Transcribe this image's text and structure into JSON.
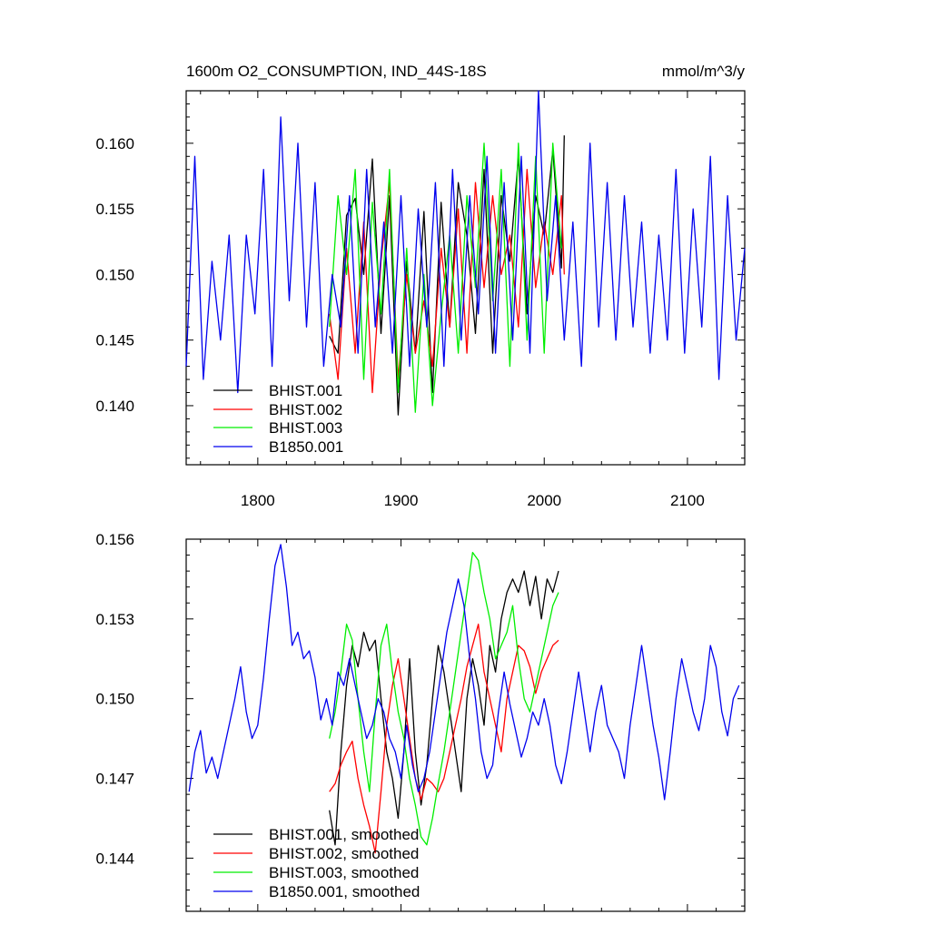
{
  "chart_data": [
    {
      "type": "line",
      "title": "1600m O2_CONSUMPTION, IND_44S-18S",
      "units": "mmol/m^3/y",
      "xlim": [
        1750,
        2140
      ],
      "ylim": [
        0.1355,
        0.164
      ],
      "x_ticks": [
        1800,
        1900,
        2000,
        2100
      ],
      "x_tick_labels": [
        "1800",
        "1900",
        "2000",
        "2100"
      ],
      "y_ticks": [
        0.14,
        0.145,
        0.15,
        0.155,
        0.16
      ],
      "y_tick_labels": [
        "0.140",
        "0.145",
        "0.150",
        "0.155",
        "0.160"
      ],
      "legend_position": "bottom-left",
      "series": [
        {
          "name": "BHIST.001",
          "color": "#000000",
          "x": [
            1850,
            1856,
            1862,
            1868,
            1874,
            1880,
            1886,
            1892,
            1898,
            1904,
            1910,
            1916,
            1922,
            1928,
            1934,
            1940,
            1946,
            1952,
            1958,
            1964,
            1970,
            1976,
            1982,
            1988,
            1994,
            2000,
            2006,
            2012,
            2014
          ],
          "values": [
            0.1453,
            0.144,
            0.1545,
            0.1558,
            0.15,
            0.1588,
            0.1455,
            0.156,
            0.1393,
            0.151,
            0.144,
            0.1548,
            0.141,
            0.1555,
            0.146,
            0.157,
            0.153,
            0.1455,
            0.158,
            0.144,
            0.156,
            0.151,
            0.159,
            0.147,
            0.156,
            0.153,
            0.1595,
            0.1505,
            0.1606
          ]
        },
        {
          "name": "BHIST.002",
          "color": "#ff0000",
          "x": [
            1850,
            1856,
            1862,
            1868,
            1874,
            1880,
            1886,
            1892,
            1898,
            1904,
            1910,
            1916,
            1922,
            1928,
            1934,
            1940,
            1946,
            1952,
            1958,
            1964,
            1970,
            1976,
            1982,
            1988,
            1994,
            2000,
            2006,
            2012,
            2014
          ],
          "values": [
            0.147,
            0.142,
            0.152,
            0.144,
            0.154,
            0.141,
            0.151,
            0.157,
            0.142,
            0.15,
            0.144,
            0.148,
            0.143,
            0.152,
            0.146,
            0.155,
            0.144,
            0.157,
            0.149,
            0.156,
            0.15,
            0.153,
            0.146,
            0.158,
            0.149,
            0.154,
            0.15,
            0.156,
            0.15
          ]
        },
        {
          "name": "BHIST.003",
          "color": "#00ee00",
          "x": [
            1850,
            1856,
            1862,
            1868,
            1874,
            1880,
            1886,
            1892,
            1898,
            1904,
            1910,
            1916,
            1922,
            1928,
            1934,
            1940,
            1946,
            1952,
            1958,
            1964,
            1970,
            1976,
            1982,
            1988,
            1994,
            2000,
            2006,
            2012
          ],
          "values": [
            0.146,
            0.156,
            0.15,
            0.158,
            0.142,
            0.1555,
            0.147,
            0.158,
            0.141,
            0.152,
            0.1395,
            0.15,
            0.14,
            0.147,
            0.153,
            0.144,
            0.156,
            0.149,
            0.16,
            0.148,
            0.158,
            0.143,
            0.16,
            0.145,
            0.159,
            0.144,
            0.16,
            0.152
          ]
        },
        {
          "name": "B1850.001",
          "color": "#0000ee",
          "x": [
            1750,
            1756,
            1762,
            1768,
            1774,
            1780,
            1786,
            1792,
            1798,
            1804,
            1810,
            1816,
            1822,
            1828,
            1834,
            1840,
            1846,
            1852,
            1858,
            1864,
            1870,
            1876,
            1882,
            1888,
            1894,
            1900,
            1906,
            1912,
            1918,
            1924,
            1930,
            1936,
            1942,
            1948,
            1954,
            1960,
            1966,
            1972,
            1978,
            1984,
            1990,
            1996,
            2002,
            2008,
            2014,
            2020,
            2026,
            2032,
            2038,
            2044,
            2050,
            2056,
            2062,
            2068,
            2074,
            2080,
            2086,
            2092,
            2098,
            2104,
            2110,
            2116,
            2122,
            2128,
            2134,
            2140
          ],
          "values": [
            0.143,
            0.159,
            0.142,
            0.151,
            0.145,
            0.153,
            0.141,
            0.153,
            0.147,
            0.158,
            0.143,
            0.162,
            0.148,
            0.16,
            0.146,
            0.157,
            0.143,
            0.15,
            0.146,
            0.156,
            0.144,
            0.158,
            0.146,
            0.154,
            0.144,
            0.156,
            0.143,
            0.155,
            0.146,
            0.157,
            0.143,
            0.158,
            0.145,
            0.156,
            0.147,
            0.159,
            0.144,
            0.157,
            0.145,
            0.159,
            0.144,
            0.164,
            0.148,
            0.156,
            0.145,
            0.154,
            0.143,
            0.16,
            0.146,
            0.157,
            0.145,
            0.156,
            0.146,
            0.154,
            0.144,
            0.153,
            0.145,
            0.158,
            0.144,
            0.155,
            0.146,
            0.159,
            0.142,
            0.156,
            0.145,
            0.152
          ]
        }
      ]
    },
    {
      "type": "line",
      "title": "",
      "xlim": [
        1750,
        2140
      ],
      "ylim": [
        0.142,
        0.156
      ],
      "x_ticks": [
        1800,
        1900,
        2000,
        2100
      ],
      "y_ticks": [
        0.144,
        0.147,
        0.15,
        0.153,
        0.156
      ],
      "y_tick_labels": [
        "0.144",
        "0.147",
        "0.150",
        "0.153",
        "0.156"
      ],
      "legend_position": "bottom-left",
      "series": [
        {
          "name": "BHIST.001, smoothed",
          "color": "#000000",
          "x": [
            1850,
            1854,
            1858,
            1862,
            1866,
            1870,
            1874,
            1878,
            1882,
            1886,
            1890,
            1894,
            1898,
            1902,
            1906,
            1910,
            1914,
            1918,
            1922,
            1926,
            1930,
            1934,
            1938,
            1942,
            1946,
            1950,
            1954,
            1958,
            1962,
            1966,
            1970,
            1974,
            1978,
            1982,
            1986,
            1990,
            1994,
            1998,
            2002,
            2006,
            2010
          ],
          "values": [
            0.1458,
            0.1445,
            0.148,
            0.1505,
            0.152,
            0.1512,
            0.1525,
            0.1518,
            0.1522,
            0.15,
            0.148,
            0.147,
            0.1455,
            0.148,
            0.1515,
            0.148,
            0.146,
            0.1475,
            0.15,
            0.152,
            0.151,
            0.1495,
            0.148,
            0.1465,
            0.15,
            0.1515,
            0.1505,
            0.149,
            0.152,
            0.151,
            0.153,
            0.154,
            0.1545,
            0.154,
            0.1548,
            0.1535,
            0.1546,
            0.153,
            0.1545,
            0.154,
            0.1548
          ]
        },
        {
          "name": "BHIST.002, smoothed",
          "color": "#ff0000",
          "x": [
            1850,
            1854,
            1858,
            1862,
            1866,
            1870,
            1874,
            1878,
            1882,
            1886,
            1890,
            1894,
            1898,
            1902,
            1906,
            1910,
            1914,
            1918,
            1922,
            1926,
            1930,
            1934,
            1938,
            1942,
            1946,
            1950,
            1954,
            1958,
            1962,
            1966,
            1970,
            1974,
            1978,
            1982,
            1986,
            1990,
            1994,
            1998,
            2002,
            2006,
            2010
          ],
          "values": [
            0.1465,
            0.1468,
            0.1475,
            0.148,
            0.1484,
            0.147,
            0.146,
            0.1452,
            0.1442,
            0.1465,
            0.149,
            0.1505,
            0.1515,
            0.15,
            0.1485,
            0.147,
            0.1462,
            0.147,
            0.1468,
            0.1465,
            0.147,
            0.148,
            0.149,
            0.15,
            0.1512,
            0.152,
            0.1528,
            0.151,
            0.15,
            0.149,
            0.148,
            0.15,
            0.151,
            0.152,
            0.1518,
            0.1512,
            0.1502,
            0.151,
            0.1515,
            0.152,
            0.1522
          ]
        },
        {
          "name": "BHIST.003, smoothed",
          "color": "#00ee00",
          "x": [
            1850,
            1854,
            1858,
            1862,
            1866,
            1870,
            1874,
            1878,
            1882,
            1886,
            1890,
            1894,
            1898,
            1902,
            1906,
            1910,
            1914,
            1918,
            1922,
            1926,
            1930,
            1934,
            1938,
            1942,
            1946,
            1950,
            1954,
            1958,
            1962,
            1966,
            1970,
            1974,
            1978,
            1982,
            1986,
            1990,
            1994,
            1998,
            2002,
            2006,
            2010
          ],
          "values": [
            0.1485,
            0.1495,
            0.151,
            0.1528,
            0.1522,
            0.15,
            0.148,
            0.1465,
            0.1495,
            0.152,
            0.1528,
            0.151,
            0.1495,
            0.1485,
            0.147,
            0.146,
            0.1448,
            0.1445,
            0.1455,
            0.1468,
            0.148,
            0.1495,
            0.151,
            0.1525,
            0.154,
            0.1555,
            0.1552,
            0.154,
            0.153,
            0.1515,
            0.152,
            0.1525,
            0.1535,
            0.1515,
            0.15,
            0.1495,
            0.1505,
            0.1515,
            0.1525,
            0.1535,
            0.154
          ]
        },
        {
          "name": "B1850.001, smoothed",
          "color": "#0000ee",
          "x": [
            1752,
            1756,
            1760,
            1764,
            1768,
            1772,
            1776,
            1780,
            1784,
            1788,
            1792,
            1796,
            1800,
            1804,
            1808,
            1812,
            1816,
            1820,
            1824,
            1828,
            1832,
            1836,
            1840,
            1844,
            1848,
            1852,
            1856,
            1860,
            1864,
            1868,
            1872,
            1876,
            1880,
            1884,
            1888,
            1892,
            1896,
            1900,
            1904,
            1908,
            1912,
            1916,
            1920,
            1924,
            1928,
            1932,
            1936,
            1940,
            1944,
            1948,
            1952,
            1956,
            1960,
            1964,
            1968,
            1972,
            1976,
            1980,
            1984,
            1988,
            1992,
            1996,
            2000,
            2004,
            2008,
            2012,
            2016,
            2020,
            2024,
            2028,
            2032,
            2036,
            2040,
            2044,
            2048,
            2052,
            2056,
            2060,
            2064,
            2068,
            2072,
            2076,
            2080,
            2084,
            2088,
            2092,
            2096,
            2100,
            2104,
            2108,
            2112,
            2116,
            2120,
            2124,
            2128,
            2132,
            2136
          ],
          "values": [
            0.1465,
            0.148,
            0.1488,
            0.1472,
            0.1478,
            0.147,
            0.148,
            0.149,
            0.15,
            0.1512,
            0.1495,
            0.1485,
            0.149,
            0.1508,
            0.153,
            0.155,
            0.1558,
            0.1542,
            0.152,
            0.1525,
            0.1515,
            0.1518,
            0.1508,
            0.1492,
            0.15,
            0.149,
            0.151,
            0.1505,
            0.1515,
            0.1505,
            0.1495,
            0.1485,
            0.149,
            0.15,
            0.1495,
            0.1485,
            0.148,
            0.147,
            0.149,
            0.1475,
            0.1465,
            0.147,
            0.148,
            0.1495,
            0.151,
            0.1525,
            0.1535,
            0.1545,
            0.1535,
            0.1515,
            0.15,
            0.148,
            0.147,
            0.1475,
            0.1495,
            0.151,
            0.1498,
            0.1488,
            0.1478,
            0.1485,
            0.1495,
            0.149,
            0.15,
            0.149,
            0.1475,
            0.1468,
            0.148,
            0.1495,
            0.151,
            0.1495,
            0.148,
            0.1495,
            0.1505,
            0.149,
            0.1485,
            0.148,
            0.147,
            0.149,
            0.1505,
            0.152,
            0.1505,
            0.149,
            0.1478,
            0.1462,
            0.148,
            0.15,
            0.1515,
            0.1505,
            0.1495,
            0.1488,
            0.15,
            0.152,
            0.1512,
            0.1495,
            0.1486,
            0.15,
            0.1505
          ]
        }
      ]
    }
  ]
}
